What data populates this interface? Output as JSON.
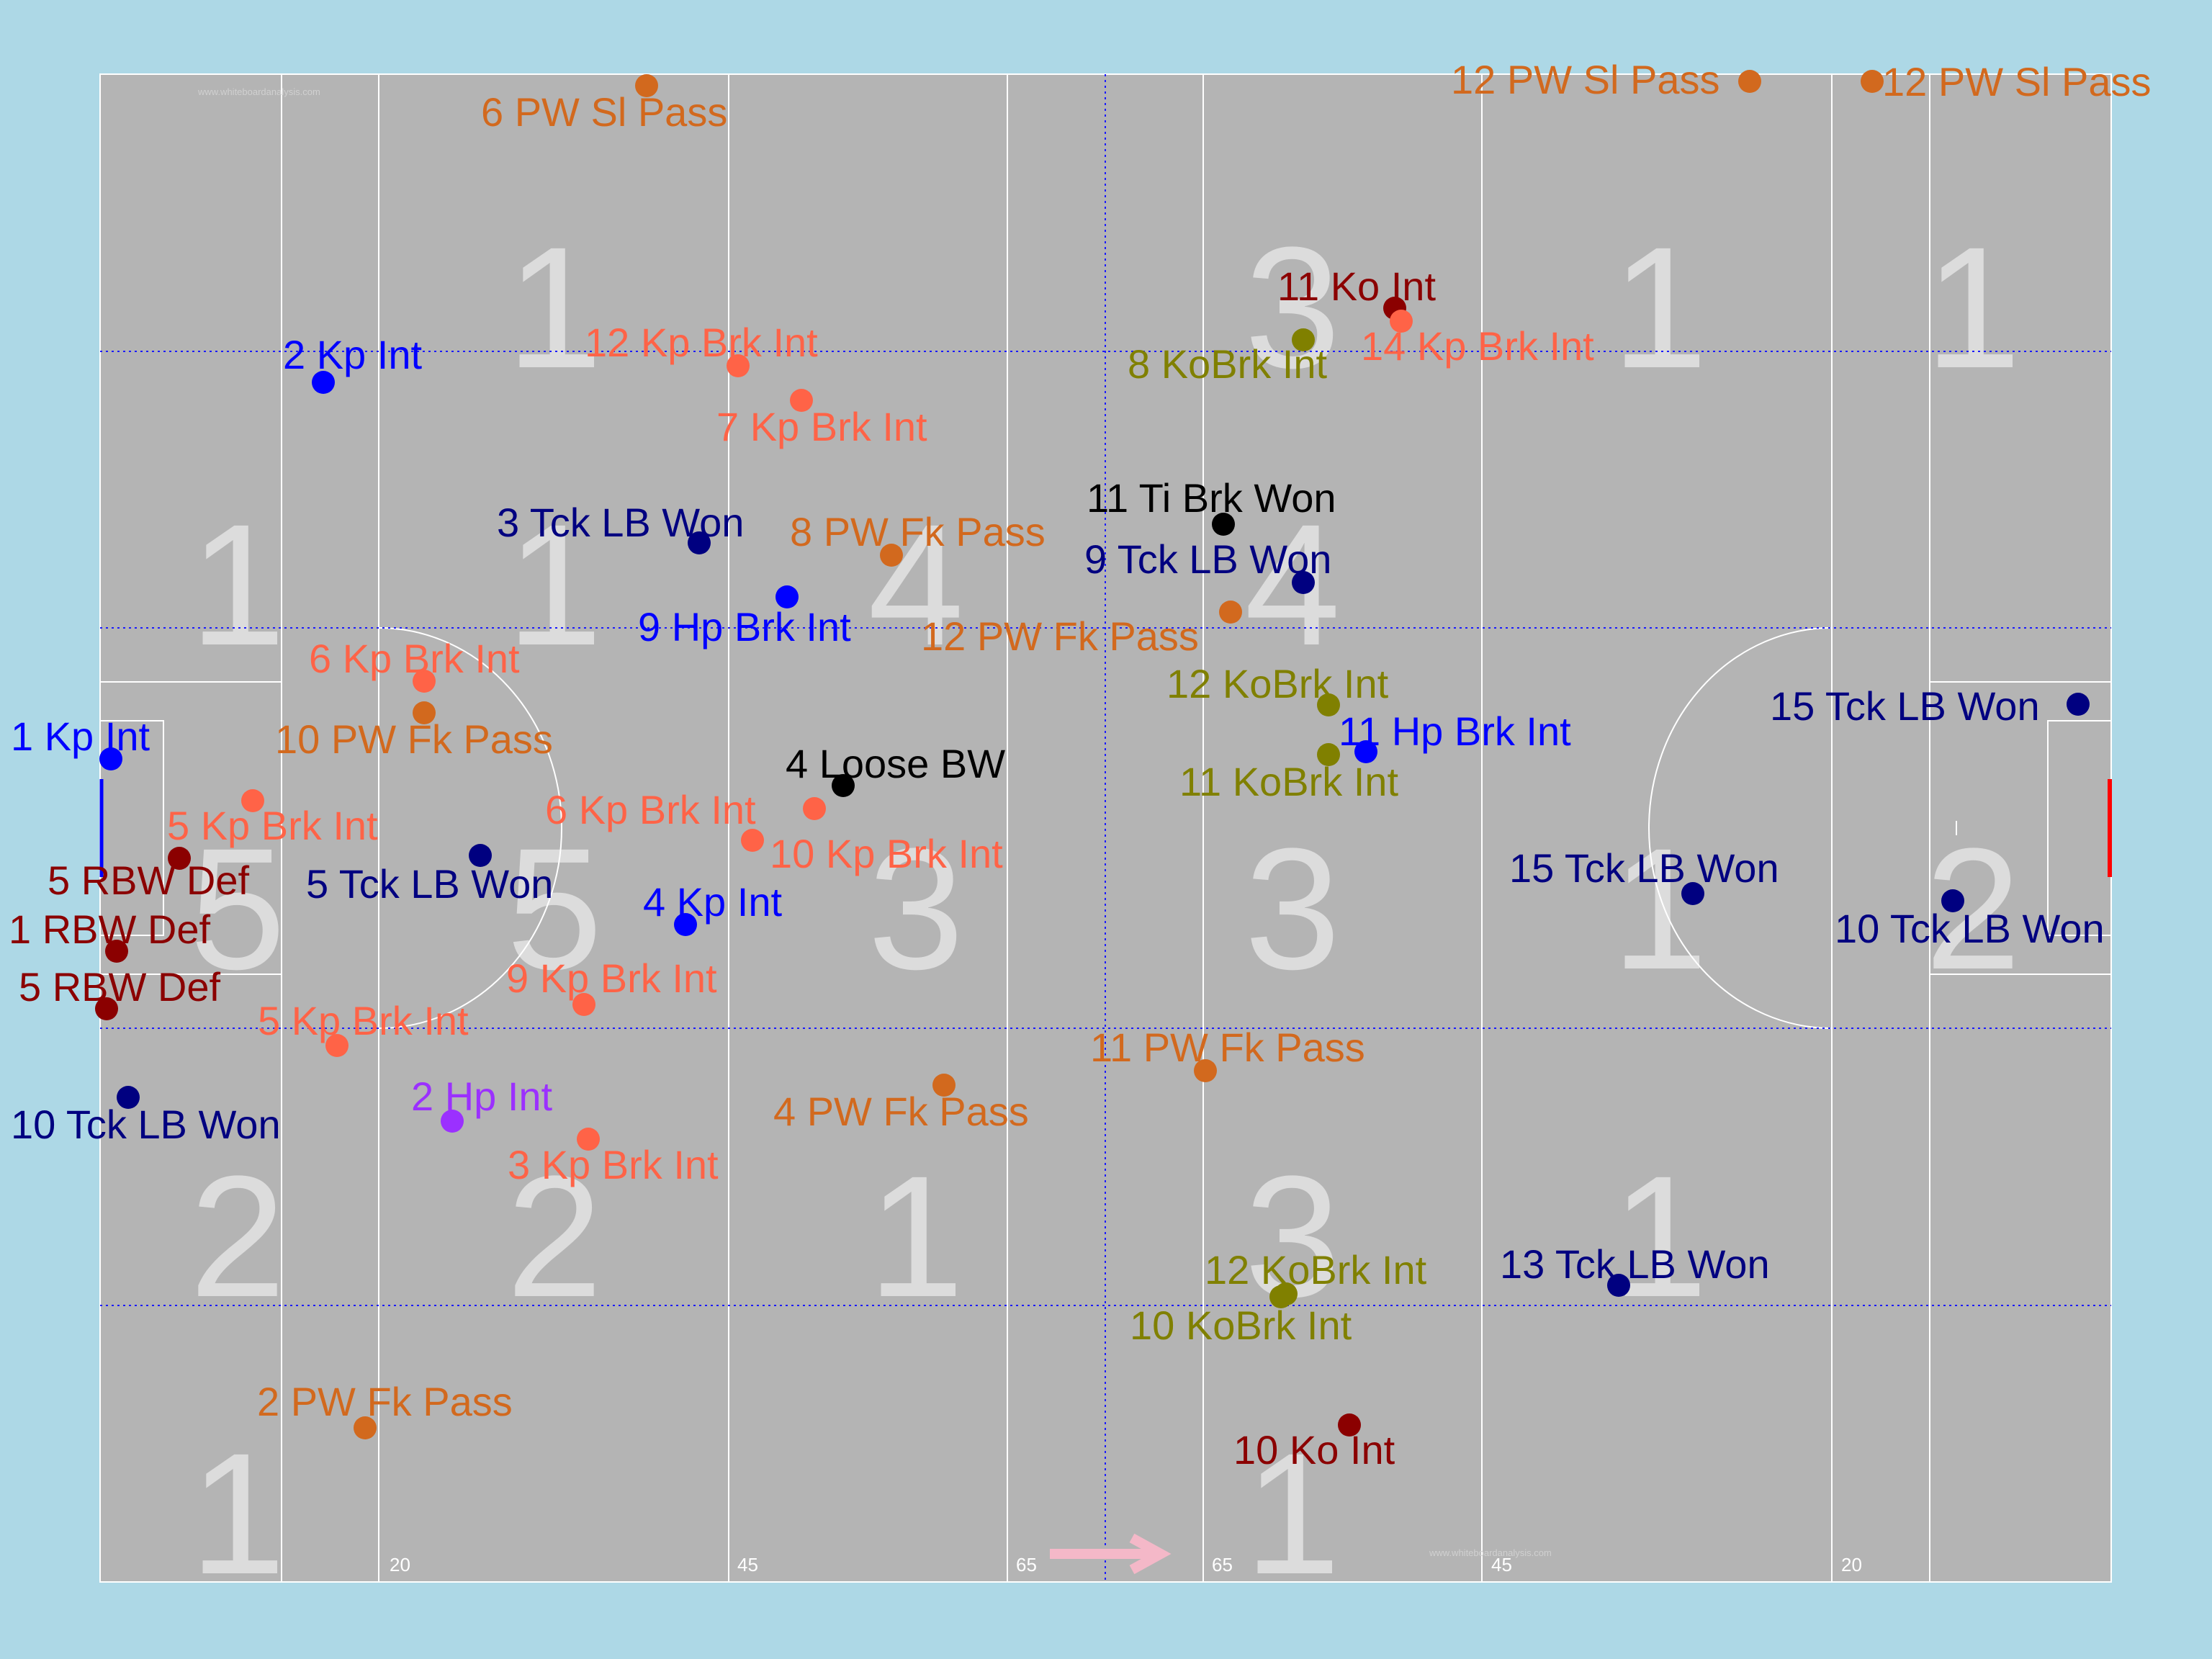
{
  "watermark": "www.whiteboardanalysis.com",
  "colors": {
    "background": "#add8e6",
    "pitch": "#b4b4b4",
    "lines": "#ffffff",
    "zone_number": "#dcdcdc",
    "dotted_lines": "#1a1aff",
    "arrow": "#f4b8c8",
    "red_goal": "#ff0000"
  },
  "distance_ticks": [
    "20",
    "45",
    "65",
    "65",
    "45",
    "20"
  ],
  "zone_numbers": [
    {
      "value": "1",
      "row": 1,
      "col": 2
    },
    {
      "value": "3",
      "row": 1,
      "col": 4
    },
    {
      "value": "1",
      "row": 1,
      "col": 5
    },
    {
      "value": "1",
      "row": 1,
      "col": 6
    },
    {
      "value": "1",
      "row": 2,
      "col": 1
    },
    {
      "value": "1",
      "row": 2,
      "col": 2
    },
    {
      "value": "4",
      "row": 2,
      "col": 3
    },
    {
      "value": "4",
      "row": 2,
      "col": 4
    },
    {
      "value": "5",
      "row": 3,
      "col": 1
    },
    {
      "value": "5",
      "row": 3,
      "col": 2
    },
    {
      "value": "3",
      "row": 3,
      "col": 3
    },
    {
      "value": "3",
      "row": 3,
      "col": 4
    },
    {
      "value": "1",
      "row": 3,
      "col": 5
    },
    {
      "value": "2",
      "row": 3,
      "col": 6
    },
    {
      "value": "2",
      "row": 4,
      "col": 1
    },
    {
      "value": "2",
      "row": 4,
      "col": 2
    },
    {
      "value": "1",
      "row": 4,
      "col": 3
    },
    {
      "value": "3",
      "row": 4,
      "col": 4
    },
    {
      "value": "1",
      "row": 4,
      "col": 5
    },
    {
      "value": "1",
      "row": 5,
      "col": 1
    },
    {
      "value": "1",
      "row": 5,
      "col": 4
    }
  ],
  "categories": {
    "kp_int": {
      "color": "#0000ff"
    },
    "hp_int": {
      "color": "#9b30ff"
    },
    "kp_brk_int": {
      "color": "#ff6347"
    },
    "pw_pass": {
      "color": "#d2691e"
    },
    "kobrk_int": {
      "color": "#808000"
    },
    "ko_int": {
      "color": "#8b0000"
    },
    "rbw_def": {
      "color": "#8b0000"
    },
    "tck_lb_won": {
      "color": "#000080"
    },
    "black": {
      "color": "#000000"
    }
  },
  "events": [
    {
      "label": "6 PW Sl Pass",
      "cat": "pw_pass"
    },
    {
      "label": "12 PW Sl Pass",
      "cat": "pw_pass"
    },
    {
      "label": "12 PW Sl Pass",
      "cat": "pw_pass"
    },
    {
      "label": "11 Ko Int",
      "cat": "ko_int"
    },
    {
      "label": "14 Kp Brk Int",
      "cat": "kp_brk_int"
    },
    {
      "label": "8 KoBrk Int",
      "cat": "kobrk_int"
    },
    {
      "label": "12 Kp Brk Int",
      "cat": "kp_brk_int"
    },
    {
      "label": "2 Kp Int",
      "cat": "kp_int"
    },
    {
      "label": "7 Kp Brk Int",
      "cat": "kp_brk_int"
    },
    {
      "label": "11 Ti Brk Won",
      "cat": "black"
    },
    {
      "label": "3 Tck LB Won",
      "cat": "tck_lb_won"
    },
    {
      "label": "8 PW Fk Pass",
      "cat": "pw_pass"
    },
    {
      "label": "9 Tck LB Won",
      "cat": "tck_lb_won"
    },
    {
      "label": "9 Hp Brk Int",
      "cat": "kp_int"
    },
    {
      "label": "12 PW Fk Pass",
      "cat": "pw_pass"
    },
    {
      "label": "6 Kp Brk Int",
      "cat": "kp_brk_int"
    },
    {
      "label": "12 KoBrk Int",
      "cat": "kobrk_int"
    },
    {
      "label": "15 Tck LB Won",
      "cat": "tck_lb_won"
    },
    {
      "label": "10 PW Fk Pass",
      "cat": "pw_pass"
    },
    {
      "label": "11 Hp Brk Int",
      "cat": "kp_int"
    },
    {
      "label": "1 Kp Int",
      "cat": "kp_int"
    },
    {
      "label": "4 Loose BW",
      "cat": "black"
    },
    {
      "label": "11 KoBrk Int",
      "cat": "kobrk_int"
    },
    {
      "label": "6 Kp Brk Int",
      "cat": "kp_brk_int"
    },
    {
      "label": "5 Kp Brk Int",
      "cat": "kp_brk_int"
    },
    {
      "label": "10 Kp Brk Int",
      "cat": "kp_brk_int"
    },
    {
      "label": "5 RBW Def",
      "cat": "rbw_def"
    },
    {
      "label": "5 Tck LB Won",
      "cat": "tck_lb_won"
    },
    {
      "label": "15 Tck LB Won",
      "cat": "tck_lb_won"
    },
    {
      "label": "4 Kp Int",
      "cat": "kp_int"
    },
    {
      "label": "10 Tck LB Won",
      "cat": "tck_lb_won"
    },
    {
      "label": "1 RBW Def",
      "cat": "rbw_def"
    },
    {
      "label": "9 Kp Brk Int",
      "cat": "kp_brk_int"
    },
    {
      "label": "5 RBW Def",
      "cat": "rbw_def"
    },
    {
      "label": "5 Kp Brk Int",
      "cat": "kp_brk_int"
    },
    {
      "label": "11 PW Fk Pass",
      "cat": "pw_pass"
    },
    {
      "label": "2 Hp Int",
      "cat": "hp_int"
    },
    {
      "label": "4 PW Fk Pass",
      "cat": "pw_pass"
    },
    {
      "label": "10 Tck LB Won",
      "cat": "tck_lb_won"
    },
    {
      "label": "3 Kp Brk Int",
      "cat": "kp_brk_int"
    },
    {
      "label": "12 KoBrk Int",
      "cat": "kobrk_int"
    },
    {
      "label": "13 Tck LB Won",
      "cat": "tck_lb_won"
    },
    {
      "label": "10 KoBrk Int",
      "cat": "kobrk_int"
    },
    {
      "label": "2 PW Fk Pass",
      "cat": "pw_pass"
    },
    {
      "label": "10 Ko Int",
      "cat": "ko_int"
    }
  ]
}
